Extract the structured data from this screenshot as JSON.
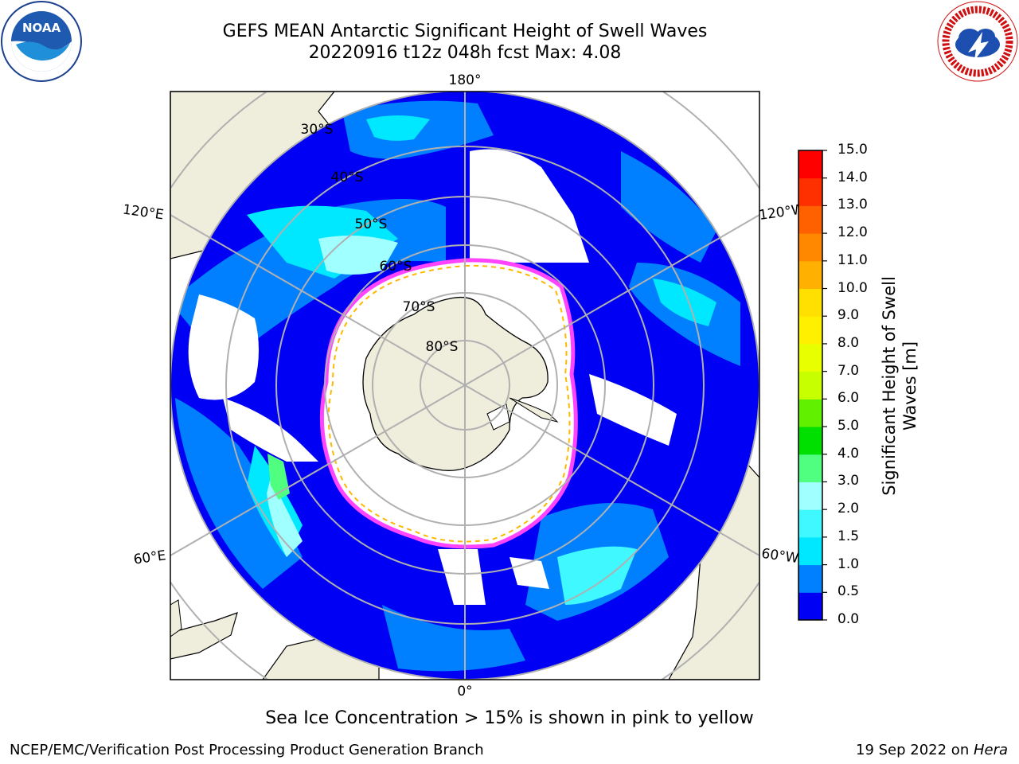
{
  "header": {
    "title_line1": "GEFS MEAN Antarctic Significant Height of Swell Waves",
    "title_line2": "20220916 t12z 048h fcst   Max: 4.08"
  },
  "logos": {
    "left": {
      "text": "NOAA",
      "ring_text": "NATIONAL OCEANIC AND ATMOSPHERIC ADMINISTRATION · U.S. DEPARTMENT OF COMMERCE",
      "icon": "noaa-logo"
    },
    "right": {
      "ring_text": "NATIONAL WEATHER SERVICE",
      "icon": "nws-logo"
    }
  },
  "map": {
    "projection": "south-polar-stereographic",
    "longitude_labels": {
      "top": "180°",
      "bottom": "0°",
      "upper_left": "120°E",
      "upper_right": "120°W",
      "lower_left": "60°E",
      "lower_right": "60°W"
    },
    "latitude_labels": [
      "30°S",
      "40°S",
      "50°S",
      "60°S",
      "70°S",
      "80°S"
    ],
    "colors": {
      "land": "#efeddc",
      "ice_free_low": "#0000f5",
      "ice_edge": [
        "#ff44ff",
        "#ffb800"
      ],
      "grid": "#b0b0b0"
    }
  },
  "colorbar": {
    "label": "Significant Height of Swell Waves [m]",
    "label_line1": "Significant Height of Swell",
    "label_line2": "Waves [m]",
    "ticks": [
      "15.0",
      "14.0",
      "13.0",
      "12.0",
      "11.0",
      "10.0",
      "9.0",
      "8.0",
      "7.0",
      "6.0",
      "5.0",
      "4.0",
      "3.0",
      "2.0",
      "1.5",
      "1.0",
      "0.5",
      "0.0"
    ],
    "levels": [
      0.0,
      0.5,
      1.0,
      1.5,
      2.0,
      3.0,
      4.0,
      5.0,
      6.0,
      7.0,
      8.0,
      9.0,
      10.0,
      11.0,
      12.0,
      13.0,
      14.0,
      15.0
    ],
    "colors": [
      "#0000f5",
      "#0080ff",
      "#00e8ff",
      "#40f8ff",
      "#a0ffff",
      "#50ff80",
      "#00e000",
      "#60f000",
      "#c8ff00",
      "#e8ff00",
      "#fff000",
      "#ffe000",
      "#ffb000",
      "#ff8800",
      "#ff6000",
      "#ff3000",
      "#ff0000"
    ]
  },
  "footer": {
    "note": "Sea Ice Concentration > 15% is shown in pink to yellow",
    "left": "NCEP/EMC/Verification Post Processing Product Generation Branch",
    "right_prefix": "19 Sep 2022 on ",
    "right_machine": "Hera"
  }
}
